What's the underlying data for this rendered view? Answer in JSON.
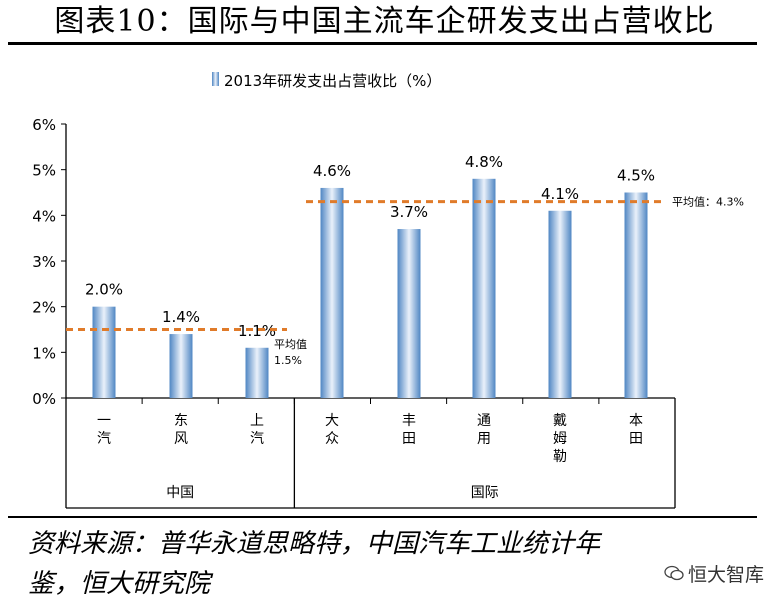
{
  "header": {
    "title": "图表10：国际与中国主流车企研发支出占营收比"
  },
  "legend": {
    "label": "2013年研发支出占营收比（%）"
  },
  "footer": {
    "source_line1": "资料来源：普华永道思略特，中国汽车工业统计年",
    "source_line2": "鉴，恒大研究院",
    "watermark": "恒大智库",
    "watermark_icon": "wechat-icon"
  },
  "colors": {
    "bar_gradient": [
      "#5b8fc8",
      "#e6eff9"
    ],
    "avg_line": "#e07b2a",
    "axis": "#000000"
  },
  "chart_data": {
    "type": "bar",
    "title": "",
    "series": [
      {
        "name": "2013年研发支出占营收比（%）",
        "values": [
          2.0,
          1.4,
          1.1,
          4.6,
          3.7,
          4.8,
          4.1,
          4.5
        ]
      }
    ],
    "categories": [
      "一汽",
      "东风",
      "上汽",
      "大众",
      "丰田",
      "通用",
      "戴姆勒",
      "本田"
    ],
    "data_labels": [
      "2.0%",
      "1.4%",
      "1.1%",
      "4.6%",
      "3.7%",
      "4.8%",
      "4.1%",
      "4.5%"
    ],
    "groups": [
      {
        "label": "中国",
        "count": 3
      },
      {
        "label": "国际",
        "count": 5
      }
    ],
    "averages": [
      {
        "group": "中国",
        "value": 1.5,
        "label_line1": "平均值",
        "label_line2": "1.5%"
      },
      {
        "group": "国际",
        "value": 4.3,
        "label": "平均值：4.3%"
      }
    ],
    "yticks": [
      "0%",
      "1%",
      "2%",
      "3%",
      "4%",
      "5%",
      "6%"
    ],
    "ylim": [
      0,
      6
    ],
    "xlabel": "",
    "ylabel": "",
    "grid": false,
    "legend_position": "top"
  }
}
